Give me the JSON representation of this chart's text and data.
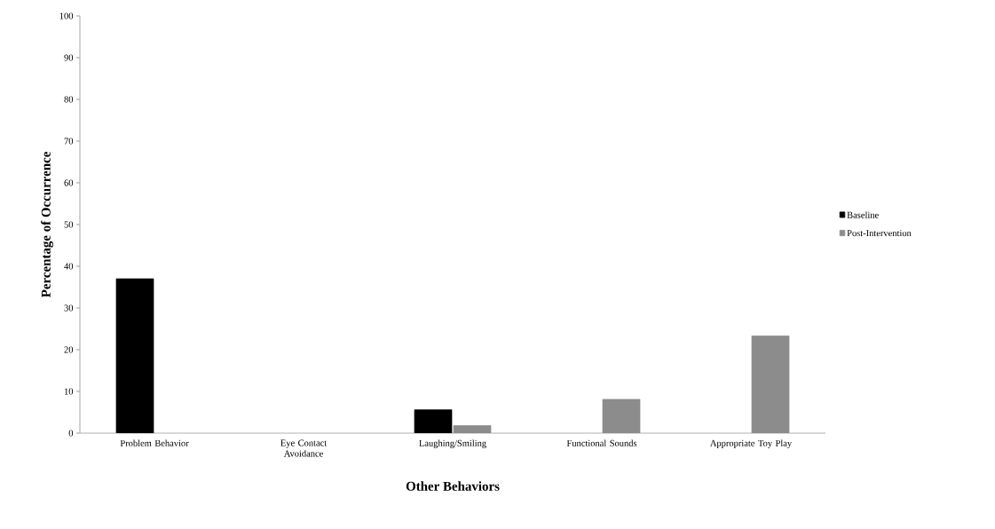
{
  "chart_data": {
    "type": "bar",
    "xlabel": "Other Behaviors",
    "ylabel": "Percentage of Occurrence",
    "categories": [
      "Problem Behavior",
      "Eye Contact Avoidance",
      "Laughing/Smiling",
      "Functional Sounds",
      "Appropriate Toy Play"
    ],
    "series": [
      {
        "name": "Baseline",
        "color": "#000000",
        "values": [
          37,
          null,
          5.6,
          null,
          null
        ]
      },
      {
        "name": "Post-Intervention",
        "color": "#8c8c8c",
        "values": [
          null,
          null,
          1.8,
          8.1,
          23.3
        ]
      }
    ],
    "ylim": [
      0,
      100
    ],
    "yticks": [
      0,
      10,
      20,
      30,
      40,
      50,
      60,
      70,
      80,
      90,
      100
    ],
    "grid": false,
    "legend": "right"
  }
}
